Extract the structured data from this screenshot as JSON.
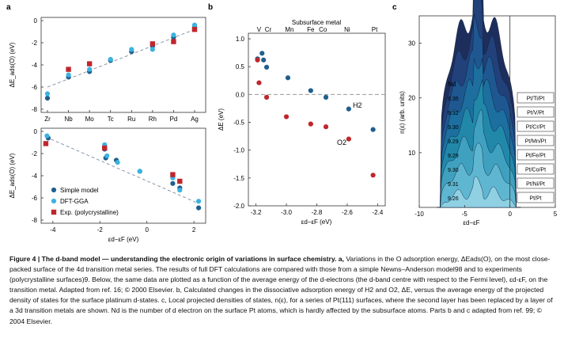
{
  "figure": {
    "panel_a_label": "a",
    "panel_b_label": "b",
    "panel_c_label": "c"
  },
  "chart_data": [
    {
      "panel": "a (top)",
      "type": "scatter",
      "ylabel": "ΔE_ads(O) (eV)",
      "categories": [
        "Zr",
        "Nb",
        "Mo",
        "Tc",
        "Ru",
        "Rh",
        "Pd",
        "Ag"
      ],
      "ylim": [
        -8,
        0
      ],
      "yticks": [
        0,
        -2,
        -4,
        -6,
        -8
      ],
      "series": [
        {
          "name": "Simple model",
          "color": "#1f5f8e",
          "values": [
            -7.0,
            -5.1,
            -4.6,
            -3.6,
            -2.8,
            -2.3,
            -1.5,
            -0.6
          ]
        },
        {
          "name": "DFT-GGA",
          "color": "#3bb3e0",
          "values": [
            -6.6,
            -4.9,
            -4.4,
            -3.5,
            -2.6,
            -2.6,
            -1.3,
            -0.4
          ]
        },
        {
          "name": "Exp. (polycrystalline)",
          "color": "#c0262d",
          "values": [
            null,
            -4.4,
            -3.9,
            null,
            null,
            -2.1,
            -1.9,
            -0.8
          ]
        }
      ],
      "trendline": {
        "from": -6.0,
        "to": -0.8
      }
    },
    {
      "panel": "a (bottom)",
      "type": "scatter",
      "xlabel": "εd−εF (eV)",
      "ylabel": "ΔE_ads(O) (eV)",
      "xlim": [
        -4.5,
        2.5
      ],
      "xticks": [
        -4,
        -2,
        0,
        2
      ],
      "ylim": [
        -8,
        0
      ],
      "yticks": [
        0,
        -2,
        -4,
        -6,
        -8
      ],
      "legend": [
        "Simple model",
        "DFT-GGA",
        "Exp. (polycrystalline)"
      ],
      "legend_position": "bottom-left",
      "series": [
        {
          "name": "Simple model",
          "color": "#1f5f8e",
          "points": [
            [
              -4.2,
              -0.6
            ],
            [
              -1.8,
              -1.6
            ],
            [
              -1.75,
              -2.4
            ],
            [
              -1.3,
              -2.6
            ],
            [
              -0.3,
              -3.6
            ],
            [
              1.1,
              -4.7
            ],
            [
              1.4,
              -5.1
            ],
            [
              2.2,
              -6.9
            ]
          ]
        },
        {
          "name": "DFT-GGA",
          "color": "#3bb3e0",
          "points": [
            [
              -4.25,
              -0.4
            ],
            [
              -1.8,
              -1.2
            ],
            [
              -1.7,
              -2.2
            ],
            [
              -1.25,
              -2.8
            ],
            [
              -0.3,
              -3.6
            ],
            [
              1.1,
              -4.2
            ],
            [
              1.4,
              -5.3
            ],
            [
              2.2,
              -6.3
            ]
          ]
        },
        {
          "name": "Exp. (polycrystalline)",
          "color": "#c0262d",
          "points": [
            [
              -4.3,
              -1.1
            ],
            [
              -1.8,
              -1.5
            ],
            [
              1.1,
              -3.9
            ],
            [
              1.4,
              -4.5
            ]
          ]
        }
      ]
    },
    {
      "panel": "b",
      "type": "scatter",
      "title": "Subsurface metal",
      "top_labels": [
        "V",
        "Cr",
        "Mn",
        "Fe",
        "Co",
        "Ni",
        "Pt"
      ],
      "top_label_x": [
        -3.18,
        -3.12,
        -2.98,
        -2.84,
        -2.76,
        -2.6,
        -2.42
      ],
      "xlabel": "εd−εF (eV)",
      "ylabel": "ΔE (eV)",
      "xlim": [
        -3.25,
        -2.35
      ],
      "xticks": [
        -3.2,
        -3.0,
        -2.8,
        -2.6,
        -2.4
      ],
      "ylim": [
        -2.0,
        1.1
      ],
      "yticks": [
        1.0,
        0.5,
        0.0,
        -0.5,
        -1.0,
        -1.5,
        -2.0
      ],
      "annotations": [
        "H2",
        "O2"
      ],
      "series": [
        {
          "name": "H2",
          "color": "#1f5f8e",
          "points": [
            [
              -3.19,
              0.64
            ],
            [
              -3.16,
              0.74
            ],
            [
              -3.15,
              0.62
            ],
            [
              -3.13,
              0.49
            ],
            [
              -2.99,
              0.3
            ],
            [
              -2.84,
              0.07
            ],
            [
              -2.74,
              -0.05
            ],
            [
              -2.59,
              -0.26
            ],
            [
              -2.43,
              -0.63
            ]
          ]
        },
        {
          "name": "O2",
          "color": "#c0262d",
          "points": [
            [
              -3.19,
              0.62
            ],
            [
              -3.18,
              0.21
            ],
            [
              -3.13,
              -0.05
            ],
            [
              -3.0,
              -0.4
            ],
            [
              -2.84,
              -0.53
            ],
            [
              -2.74,
              -0.58
            ],
            [
              -2.59,
              -0.8
            ],
            [
              -2.43,
              -1.45
            ]
          ]
        }
      ]
    },
    {
      "panel": "c",
      "type": "area",
      "xlabel": "εd−εF",
      "ylabel": "n(ε) (arb. units)",
      "xlim": [
        -10,
        5
      ],
      "xticks": [
        -10,
        -5,
        0,
        5
      ],
      "ylim": [
        0,
        35
      ],
      "yticks": [
        10,
        20,
        30
      ],
      "nd_header": "Nd",
      "series": [
        {
          "name": "Pt/Ti/Pt",
          "nd": "9.35"
        },
        {
          "name": "Pt/V/Pt",
          "nd": "9.32"
        },
        {
          "name": "Pt/Cr/Pt",
          "nd": "9.30"
        },
        {
          "name": "Pt/Mn/Pt",
          "nd": "9.29"
        },
        {
          "name": "Pt/Fe/Pt",
          "nd": "9.29"
        },
        {
          "name": "Pt/Co/Pt",
          "nd": "9.30"
        },
        {
          "name": "Pt/Ni/Pt",
          "nd": "9.31"
        },
        {
          "name": "Pt/Pt",
          "nd": "9.26"
        }
      ]
    }
  ],
  "caption": {
    "lead": "Figure 4 | The d-band model — understanding the electronic origin of variations in surface chemistry. a,",
    "body": "Variations in the O adsorption energy, ΔEads(O), on the most close-packed surface of the 4d transition metal series. The results of full DFT calculations are compared with those from a simple Newns–Anderson model98 and to experiments (polycrystalline surfaces)9. Below, the same data are plotted as a function of the average energy of the d-electrons (the d-band centre with respect to the Fermi level), εd-εF, on the transition metal. Adapted from ref. 16; © 2000 Elsevier. b, Calculated changes in the dissociative adsorption energy of H2 and O2, ΔE, versus the average energy of the projected density of states for the surface platinum d-states. c, Local projected densities of states, n(ε), for a series of Pt(111) surfaces, where the second layer has been replaced by a layer of a 3d transition metals are shown. Nd is the number of d electron on the surface Pt atoms, which is hardly affected by the subsurface atoms. Parts b and c adapted from ref. 99; © 2004 Elsevier."
  },
  "colors": {
    "simple_model": "#1f5f8e",
    "dft_gga": "#3bb3e0",
    "experiment": "#c0262d",
    "trend_line": "#8a96a8"
  }
}
